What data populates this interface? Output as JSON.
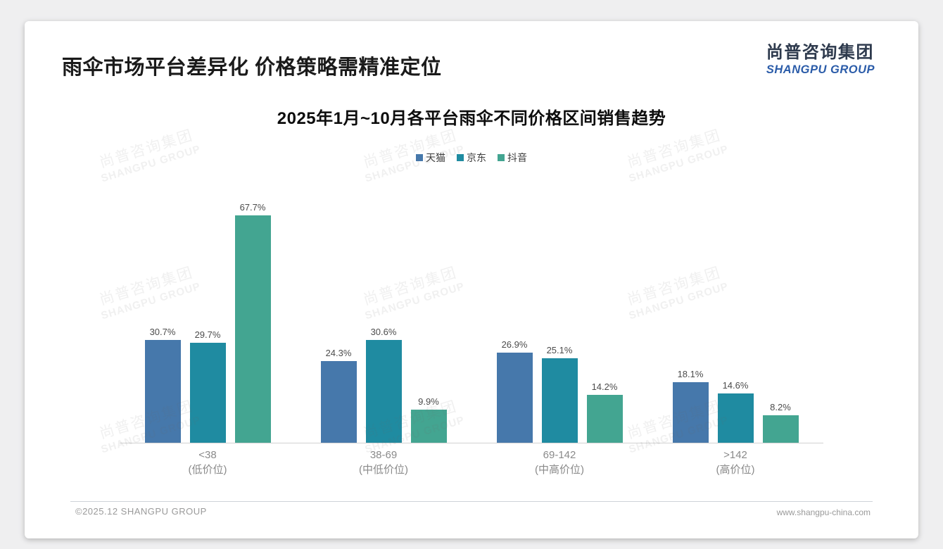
{
  "page": {
    "title": "雨伞市场平台差异化 价格策略需精准定位",
    "logo": {
      "cn": "尚普咨询集团",
      "en": "SHANGPU GROUP"
    },
    "watermark": {
      "cn": "尚普咨询集团",
      "en": "SHANGPU GROUP"
    },
    "footer": {
      "left": "©2025.12 SHANGPU GROUP",
      "right": "www.shangpu-china.com"
    }
  },
  "chart_data": {
    "type": "bar",
    "title": "2025年1月~10月各平台雨伞不同价格区间销售趋势",
    "categories": [
      {
        "label": "<38",
        "sub": "(低价位)"
      },
      {
        "label": "38-69",
        "sub": "(中低价位)"
      },
      {
        "label": "69-142",
        "sub": "(中高价位)"
      },
      {
        "label": ">142",
        "sub": "(高价位)"
      }
    ],
    "series": [
      {
        "name": "天猫",
        "color": "#4678ab",
        "values": [
          30.7,
          24.3,
          26.9,
          18.1
        ]
      },
      {
        "name": "京东",
        "color": "#1f8ba1",
        "values": [
          29.7,
          30.6,
          25.1,
          14.6
        ]
      },
      {
        "name": "抖音",
        "color": "#43a591",
        "values": [
          67.7,
          9.9,
          14.2,
          8.2
        ]
      }
    ],
    "value_suffix": "%",
    "ylim": [
      0,
      72
    ],
    "grid": false,
    "legend_position": "top",
    "xlabel": "",
    "ylabel": ""
  }
}
